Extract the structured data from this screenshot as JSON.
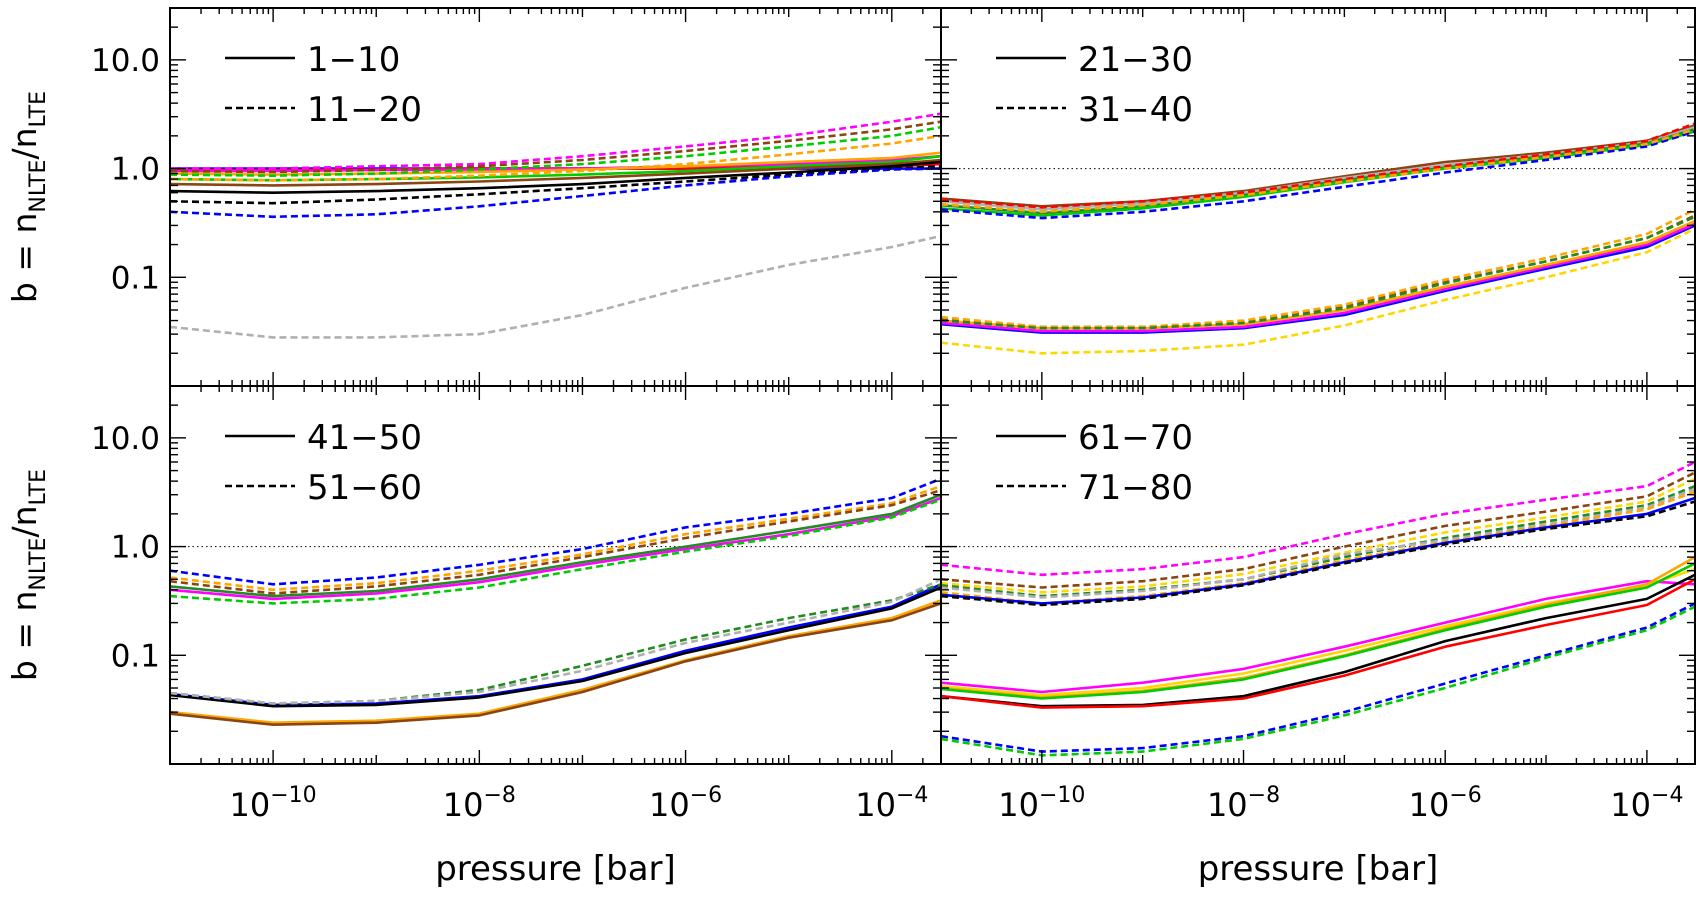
{
  "chart_data": {
    "type": "line",
    "x_scale": "log",
    "y_scale": "log",
    "xlim": [
      1e-11,
      0.0003
    ],
    "ylim": [
      0.01,
      30
    ],
    "xlabel": "pressure [bar]",
    "ylabel_parts": {
      "main": "b = n",
      "sub1": "NLTE",
      "slash": "/n",
      "sub2": "LTE"
    },
    "x_ticks": [
      {
        "value": 1e-10,
        "base": "10",
        "exp": "−10"
      },
      {
        "value": 1e-08,
        "base": "10",
        "exp": "−8"
      },
      {
        "value": 1e-06,
        "base": "10",
        "exp": "−6"
      },
      {
        "value": 0.0001,
        "base": "10",
        "exp": "−4"
      }
    ],
    "y_ticks": [
      {
        "value": 10,
        "label": "10.0"
      },
      {
        "value": 1,
        "label": "1.0"
      },
      {
        "value": 0.1,
        "label": "0.1"
      }
    ],
    "reference_line": 1.0,
    "colors": [
      "#000000",
      "#0000ff",
      "#ff0000",
      "#00cc00",
      "#ff00ff",
      "#ffa500",
      "#8b4513",
      "#228b22",
      "#ffd700",
      "#b0b0b0"
    ],
    "x": [
      1e-11,
      1e-10,
      1e-09,
      1e-08,
      1e-07,
      1e-06,
      1e-05,
      0.0001,
      0.0003
    ],
    "panels": [
      {
        "legend": [
          {
            "style": "solid",
            "label": "1−10"
          },
          {
            "style": "dashed",
            "label": "11−20"
          }
        ],
        "show_ref": false,
        "series": [
          {
            "style": "solid",
            "color": "#0000ff",
            "y": [
              1.0,
              1.0,
              1.0,
              1.0,
              1.0,
              1.0,
              1.0,
              1.0,
              1.0
            ]
          },
          {
            "style": "solid",
            "color": "#ff0000",
            "y": [
              0.97,
              0.97,
              0.98,
              1.0,
              1.0,
              1.0,
              1.05,
              1.05,
              1.1
            ]
          },
          {
            "style": "solid",
            "color": "#ff00ff",
            "y": [
              0.95,
              0.95,
              0.97,
              0.98,
              1.0,
              1.05,
              1.1,
              1.2,
              1.3
            ]
          },
          {
            "style": "solid",
            "color": "#ffa500",
            "y": [
              0.9,
              0.88,
              0.9,
              0.93,
              0.98,
              1.05,
              1.15,
              1.25,
              1.4
            ]
          },
          {
            "style": "solid",
            "color": "#00cc00",
            "y": [
              0.8,
              0.78,
              0.8,
              0.83,
              0.88,
              0.95,
              1.05,
              1.15,
              1.3
            ]
          },
          {
            "style": "solid",
            "color": "#8b4513",
            "y": [
              0.72,
              0.7,
              0.72,
              0.76,
              0.82,
              0.9,
              1.0,
              1.1,
              1.2
            ]
          },
          {
            "style": "solid",
            "color": "#000000",
            "y": [
              0.62,
              0.6,
              0.62,
              0.66,
              0.72,
              0.82,
              0.92,
              1.05,
              1.15
            ]
          },
          {
            "style": "dashed",
            "color": "#ff00ff",
            "y": [
              1.0,
              1.0,
              1.05,
              1.1,
              1.3,
              1.6,
              2.0,
              2.7,
              3.2
            ]
          },
          {
            "style": "dashed",
            "color": "#8b4513",
            "y": [
              0.95,
              0.93,
              0.97,
              1.05,
              1.2,
              1.45,
              1.8,
              2.3,
              2.7
            ]
          },
          {
            "style": "dashed",
            "color": "#00cc00",
            "y": [
              0.88,
              0.86,
              0.9,
              0.98,
              1.1,
              1.3,
              1.6,
              2.0,
              2.4
            ]
          },
          {
            "style": "dashed",
            "color": "#ffa500",
            "y": [
              0.8,
              0.78,
              0.8,
              0.86,
              0.95,
              1.1,
              1.35,
              1.7,
              2.0
            ]
          },
          {
            "style": "dashed",
            "color": "#000000",
            "y": [
              0.5,
              0.48,
              0.52,
              0.58,
              0.66,
              0.76,
              0.88,
              1.0,
              1.05
            ]
          },
          {
            "style": "dashed",
            "color": "#0000ff",
            "y": [
              0.4,
              0.36,
              0.38,
              0.45,
              0.56,
              0.7,
              0.85,
              0.98,
              1.0
            ]
          },
          {
            "style": "dashed",
            "color": "#b0b0b0",
            "y": [
              0.035,
              0.028,
              0.028,
              0.03,
              0.045,
              0.08,
              0.13,
              0.19,
              0.24
            ]
          }
        ]
      },
      {
        "legend": [
          {
            "style": "solid",
            "label": "21−30"
          },
          {
            "style": "dashed",
            "label": "31−40"
          }
        ],
        "show_ref": true,
        "series": [
          {
            "style": "solid",
            "color": "#8b4513",
            "y": [
              0.53,
              0.45,
              0.5,
              0.62,
              0.85,
              1.15,
              1.4,
              1.8,
              2.5
            ]
          },
          {
            "style": "solid",
            "color": "#b0b0b0",
            "y": [
              0.5,
              0.42,
              0.48,
              0.6,
              0.82,
              1.08,
              1.35,
              1.75,
              2.4
            ]
          },
          {
            "style": "solid",
            "color": "#228b22",
            "y": [
              0.46,
              0.39,
              0.45,
              0.57,
              0.78,
              1.02,
              1.3,
              1.7,
              2.3
            ]
          },
          {
            "style": "solid",
            "color": "#00cc00",
            "y": [
              0.43,
              0.37,
              0.43,
              0.55,
              0.75,
              1.0,
              1.25,
              1.65,
              2.2
            ]
          },
          {
            "style": "dashed",
            "color": "#ff0000",
            "y": [
              0.52,
              0.44,
              0.5,
              0.6,
              0.8,
              1.05,
              1.35,
              1.8,
              2.6
            ]
          },
          {
            "style": "dashed",
            "color": "#0000ff",
            "y": [
              0.42,
              0.35,
              0.4,
              0.5,
              0.68,
              0.92,
              1.2,
              1.6,
              2.2
            ]
          },
          {
            "style": "dashed",
            "color": "#ffa500",
            "y": [
              0.47,
              0.4,
              0.46,
              0.57,
              0.76,
              1.0,
              1.28,
              1.68,
              2.3
            ]
          },
          {
            "style": "solid",
            "color": "#0000ff",
            "y": [
              0.037,
              0.031,
              0.031,
              0.034,
              0.045,
              0.075,
              0.12,
              0.19,
              0.3
            ]
          },
          {
            "style": "solid",
            "color": "#ff00ff",
            "y": [
              0.038,
              0.032,
              0.032,
              0.035,
              0.047,
              0.078,
              0.125,
              0.2,
              0.31
            ]
          },
          {
            "style": "solid",
            "color": "#ffa500",
            "y": [
              0.04,
              0.034,
              0.034,
              0.037,
              0.05,
              0.082,
              0.13,
              0.21,
              0.33
            ]
          },
          {
            "style": "dashed",
            "color": "#8b4513",
            "y": [
              0.041,
              0.035,
              0.035,
              0.039,
              0.054,
              0.09,
              0.14,
              0.23,
              0.37
            ]
          },
          {
            "style": "dashed",
            "color": "#ffa500",
            "y": [
              0.043,
              0.035,
              0.035,
              0.04,
              0.056,
              0.095,
              0.15,
              0.25,
              0.42
            ]
          },
          {
            "style": "dashed",
            "color": "#228b22",
            "y": [
              0.04,
              0.034,
              0.034,
              0.038,
              0.052,
              0.088,
              0.14,
              0.23,
              0.36
            ]
          },
          {
            "style": "dashed",
            "color": "#ffd700",
            "y": [
              0.025,
              0.02,
              0.021,
              0.024,
              0.036,
              0.062,
              0.1,
              0.17,
              0.28
            ]
          }
        ]
      },
      {
        "legend": [
          {
            "style": "solid",
            "label": "41−50"
          },
          {
            "style": "dashed",
            "label": "51−60"
          }
        ],
        "show_ref": true,
        "series": [
          {
            "style": "dashed",
            "color": "#0000ff",
            "y": [
              0.6,
              0.45,
              0.52,
              0.68,
              0.95,
              1.5,
              2.0,
              2.8,
              4.2
            ]
          },
          {
            "style": "dashed",
            "color": "#ffa500",
            "y": [
              0.52,
              0.4,
              0.46,
              0.6,
              0.85,
              1.3,
              1.8,
              2.5,
              3.6
            ]
          },
          {
            "style": "dashed",
            "color": "#8b4513",
            "y": [
              0.48,
              0.37,
              0.43,
              0.55,
              0.8,
              1.2,
              1.7,
              2.4,
              3.3
            ]
          },
          {
            "style": "solid",
            "color": "#ff00ff",
            "y": [
              0.4,
              0.33,
              0.37,
              0.47,
              0.68,
              0.95,
              1.3,
              1.9,
              2.8
            ]
          },
          {
            "style": "solid",
            "color": "#228b22",
            "y": [
              0.43,
              0.35,
              0.39,
              0.5,
              0.72,
              1.0,
              1.4,
              2.0,
              3.0
            ]
          },
          {
            "style": "dashed",
            "color": "#00cc00",
            "y": [
              0.35,
              0.3,
              0.33,
              0.42,
              0.62,
              0.9,
              1.25,
              1.85,
              2.7
            ]
          },
          {
            "style": "solid",
            "color": "#0000ff",
            "y": [
              0.044,
              0.035,
              0.036,
              0.042,
              0.06,
              0.11,
              0.18,
              0.28,
              0.45
            ]
          },
          {
            "style": "solid",
            "color": "#000000",
            "y": [
              0.043,
              0.034,
              0.035,
              0.041,
              0.058,
              0.105,
              0.17,
              0.27,
              0.42
            ]
          },
          {
            "style": "dashed",
            "color": "#228b22",
            "y": [
              0.045,
              0.036,
              0.038,
              0.048,
              0.08,
              0.14,
              0.22,
              0.32,
              0.45
            ]
          },
          {
            "style": "dashed",
            "color": "#b0b0b0",
            "y": [
              0.045,
              0.036,
              0.038,
              0.046,
              0.072,
              0.13,
              0.2,
              0.31,
              0.5
            ]
          },
          {
            "style": "solid",
            "color": "#ffa500",
            "y": [
              0.03,
              0.024,
              0.025,
              0.029,
              0.048,
              0.09,
              0.15,
              0.22,
              0.32
            ]
          },
          {
            "style": "solid",
            "color": "#8b4513",
            "y": [
              0.029,
              0.023,
              0.024,
              0.028,
              0.046,
              0.088,
              0.145,
              0.21,
              0.3
            ]
          }
        ]
      },
      {
        "legend": [
          {
            "style": "solid",
            "label": "61−70"
          },
          {
            "style": "dashed",
            "label": "71−80"
          }
        ],
        "show_ref": true,
        "series": [
          {
            "style": "dashed",
            "color": "#ff00ff",
            "y": [
              0.68,
              0.55,
              0.62,
              0.8,
              1.3,
              2.0,
              2.7,
              3.6,
              6.0
            ]
          },
          {
            "style": "dashed",
            "color": "#8b4513",
            "y": [
              0.5,
              0.42,
              0.48,
              0.62,
              1.0,
              1.55,
              2.1,
              2.9,
              4.8
            ]
          },
          {
            "style": "dashed",
            "color": "#ffd700",
            "y": [
              0.46,
              0.38,
              0.43,
              0.56,
              0.88,
              1.35,
              1.85,
              2.6,
              4.2
            ]
          },
          {
            "style": "dashed",
            "color": "#228b22",
            "y": [
              0.44,
              0.35,
              0.4,
              0.5,
              0.8,
              1.2,
              1.7,
              2.4,
              3.6
            ]
          },
          {
            "style": "dashed",
            "color": "#b0b0b0",
            "y": [
              0.42,
              0.34,
              0.39,
              0.5,
              0.85,
              1.15,
              1.6,
              2.3,
              3.4
            ]
          },
          {
            "style": "dashed",
            "color": "#ffa500",
            "y": [
              0.38,
              0.3,
              0.35,
              0.46,
              0.75,
              1.1,
              1.55,
              2.2,
              3.2
            ]
          },
          {
            "style": "solid",
            "color": "#0000ff",
            "y": [
              0.36,
              0.3,
              0.34,
              0.45,
              0.72,
              1.08,
              1.5,
              2.0,
              2.8
            ]
          },
          {
            "style": "dashed",
            "color": "#000000",
            "y": [
              0.35,
              0.29,
              0.33,
              0.44,
              0.7,
              1.05,
              1.45,
              1.9,
              2.6
            ]
          },
          {
            "style": "solid",
            "color": "#ff00ff",
            "y": [
              0.056,
              0.046,
              0.056,
              0.075,
              0.12,
              0.2,
              0.33,
              0.48,
              0.45
            ]
          },
          {
            "style": "solid",
            "color": "#ffd700",
            "y": [
              0.052,
              0.043,
              0.05,
              0.068,
              0.11,
              0.185,
              0.3,
              0.44,
              0.62
            ]
          },
          {
            "style": "solid",
            "color": "#ffa500",
            "y": [
              0.05,
              0.041,
              0.047,
              0.062,
              0.1,
              0.175,
              0.29,
              0.45,
              0.8
            ]
          },
          {
            "style": "solid",
            "color": "#00cc00",
            "y": [
              0.049,
              0.04,
              0.046,
              0.06,
              0.098,
              0.17,
              0.28,
              0.42,
              0.7
            ]
          },
          {
            "style": "solid",
            "color": "#000000",
            "y": [
              0.042,
              0.034,
              0.035,
              0.042,
              0.07,
              0.135,
              0.22,
              0.33,
              0.55
            ]
          },
          {
            "style": "solid",
            "color": "#ff0000",
            "y": [
              0.042,
              0.033,
              0.034,
              0.04,
              0.065,
              0.12,
              0.19,
              0.29,
              0.5
            ]
          },
          {
            "style": "dashed",
            "color": "#0000ff",
            "y": [
              0.018,
              0.013,
              0.014,
              0.018,
              0.03,
              0.055,
              0.1,
              0.18,
              0.3
            ]
          },
          {
            "style": "dashed",
            "color": "#00cc00",
            "y": [
              0.017,
              0.012,
              0.013,
              0.017,
              0.028,
              0.05,
              0.095,
              0.17,
              0.28
            ]
          }
        ]
      }
    ]
  }
}
